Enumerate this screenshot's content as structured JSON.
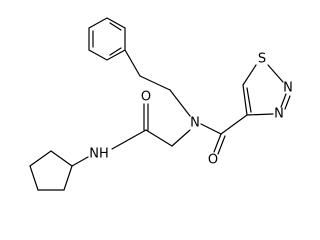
{
  "atoms": [
    {
      "label": "N"
    },
    {
      "label": "O"
    },
    {
      "label": "O"
    },
    {
      "label": "NH"
    },
    {
      "label": "S"
    },
    {
      "label": "N"
    },
    {
      "label": "N"
    }
  ]
}
